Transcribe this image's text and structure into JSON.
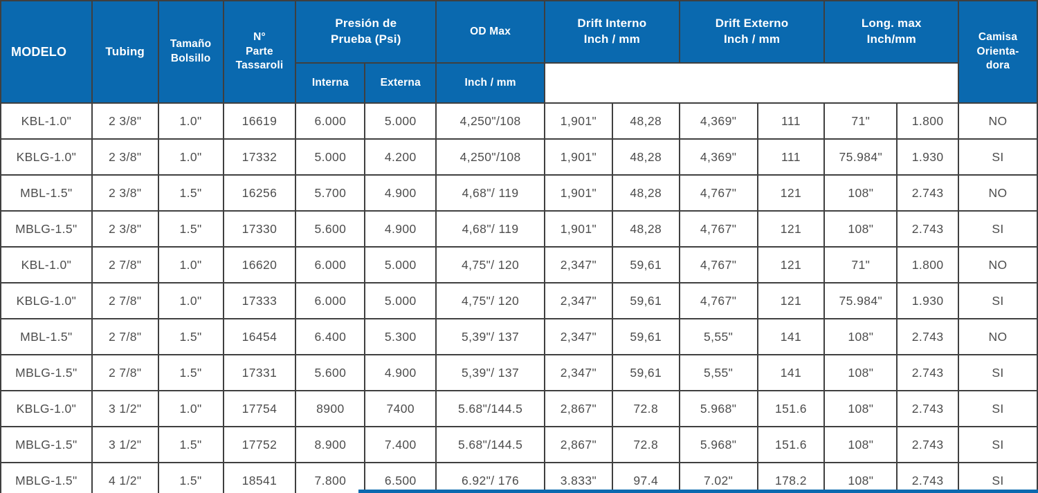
{
  "colors": {
    "header_blue": "#0a69af",
    "grid_line": "#3f3f3f",
    "body_text": "#4d4d4d",
    "header_text": "#ffffff"
  },
  "table": {
    "header": {
      "modelo": "MODELO",
      "tubing": "Tubing",
      "tamano_bolsillo": "Tamaño\nBolsillo",
      "n_parte_tassaroli": "N°\nParte\nTassaroli",
      "presion_de_prueba": "Presión de\nPrueba (Psi)",
      "interna": "Interna",
      "externa": "Externa",
      "od_max": "OD Max",
      "od_max_unit": "Inch / mm",
      "drift_interno": "Drift Interno\nInch / mm",
      "drift_externo": "Drift Externo\nInch / mm",
      "long_max": "Long. max\nInch/mm",
      "camisa_orientadora": "Camisa\nOrienta-\ndora"
    },
    "rows": [
      [
        "KBL-1.0\"",
        "2 3/8\"",
        "1.0\"",
        "16619",
        "6.000",
        "5.000",
        "4,250\"/108",
        "1,901\"",
        "48,28",
        "4,369\"",
        "111",
        "71\"",
        "1.800",
        "NO"
      ],
      [
        "KBLG-1.0\"",
        "2 3/8\"",
        "1.0\"",
        "17332",
        "5.000",
        "4.200",
        "4,250\"/108",
        "1,901\"",
        "48,28",
        "4,369\"",
        "111",
        "75.984\"",
        "1.930",
        "SI"
      ],
      [
        "MBL-1.5\"",
        "2 3/8\"",
        "1.5\"",
        "16256",
        "5.700",
        "4.900",
        "4,68\"/ 119",
        "1,901\"",
        "48,28",
        "4,767\"",
        "121",
        "108\"",
        "2.743",
        "NO"
      ],
      [
        "MBLG-1.5\"",
        "2 3/8\"",
        "1.5\"",
        "17330",
        "5.600",
        "4.900",
        "4,68\"/ 119",
        "1,901\"",
        "48,28",
        "4,767\"",
        "121",
        "108\"",
        "2.743",
        "SI"
      ],
      [
        "KBL-1.0\"",
        "2 7/8\"",
        "1.0\"",
        "16620",
        "6.000",
        "5.000",
        "4,75\"/ 120",
        "2,347\"",
        "59,61",
        "4,767\"",
        "121",
        "71\"",
        "1.800",
        "NO"
      ],
      [
        "KBLG-1.0\"",
        "2 7/8\"",
        "1.0\"",
        "17333",
        "6.000",
        "5.000",
        "4,75\"/ 120",
        "2,347\"",
        "59,61",
        "4,767\"",
        "121",
        "75.984\"",
        "1.930",
        "SI"
      ],
      [
        "MBL-1.5\"",
        "2 7/8\"",
        "1.5\"",
        "16454",
        "6.400",
        "5.300",
        "5,39\"/ 137",
        "2,347\"",
        "59,61",
        "5,55\"",
        "141",
        "108\"",
        "2.743",
        "NO"
      ],
      [
        "MBLG-1.5\"",
        "2 7/8\"",
        "1.5\"",
        "17331",
        "5.600",
        "4.900",
        "5,39\"/ 137",
        "2,347\"",
        "59,61",
        "5,55\"",
        "141",
        "108\"",
        "2.743",
        "SI"
      ],
      [
        "KBLG-1.0\"",
        "3 1/2\"",
        "1.0\"",
        "17754",
        "8900",
        "7400",
        "5.68\"/144.5",
        "2,867\"",
        "72.8",
        "5.968\"",
        "151.6",
        "108\"",
        "2.743",
        "SI"
      ],
      [
        "MBLG-1.5\"",
        "3 1/2\"",
        "1.5\"",
        "17752",
        "8.900",
        "7.400",
        "5.68\"/144.5",
        "2,867\"",
        "72.8",
        "5.968\"",
        "151.6",
        "108\"",
        "2.743",
        "SI"
      ],
      [
        "MBLG-1.5\"",
        "4 1/2\"",
        "1.5\"",
        "18541",
        "7.800",
        "6.500",
        "6.92\"/ 176",
        "3.833\"",
        "97.4",
        "7.02\"",
        "178.2",
        "108\"",
        "2.743",
        "SI"
      ]
    ]
  }
}
